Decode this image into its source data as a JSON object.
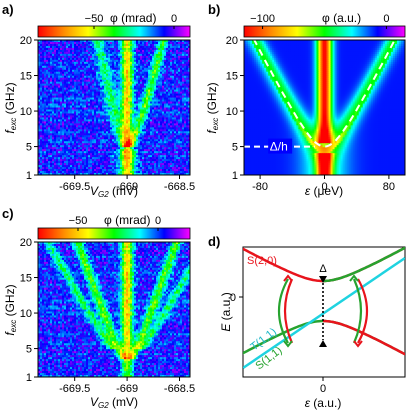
{
  "colorscale": [
    "#ff0000",
    "#ff8c00",
    "#ffff00",
    "#00ff00",
    "#00ffff",
    "#0000ff",
    "#ff00ff"
  ],
  "chart_data": [
    {
      "panel": "a)",
      "type": "heatmap",
      "colorbar": {
        "label": "φ (mrad)",
        "ticks": [
          {
            "v": -50,
            "label": "−50"
          },
          {
            "v": 0,
            "label": "0"
          }
        ],
        "range": [
          -85,
          10
        ]
      },
      "xlabel": "V_G2 (mV)",
      "ylabel": "f_exc (GHz)",
      "xlim": [
        -669.85,
        -668.4
      ],
      "ylim": [
        1,
        20
      ],
      "xticks": [
        {
          "v": -669.5,
          "label": "-669.5"
        },
        {
          "v": -669,
          "label": "-669"
        },
        {
          "v": -668.5,
          "label": "-668.5"
        }
      ],
      "yticks": [
        {
          "v": 1,
          "label": "1"
        },
        {
          "v": 5,
          "label": "5"
        },
        {
          "v": 10,
          "label": "10"
        },
        {
          "v": 15,
          "label": "15"
        },
        {
          "v": 20,
          "label": "20"
        }
      ]
    },
    {
      "panel": "b)",
      "type": "heatmap",
      "colorbar": {
        "label": "φ (a.u.)",
        "ticks": [
          {
            "v": -100,
            "label": "−100"
          },
          {
            "v": 0,
            "label": "0"
          }
        ],
        "range": [
          -115,
          15
        ]
      },
      "xlabel": "ε (μeV)",
      "ylabel": "f_exc (GHz)",
      "xlim": [
        -100,
        100
      ],
      "ylim": [
        1,
        20
      ],
      "xticks": [
        {
          "v": -80,
          "label": "-80"
        },
        {
          "v": 0,
          "label": "0"
        },
        {
          "v": 80,
          "label": "80"
        }
      ],
      "yticks": [
        {
          "v": 1,
          "label": "1"
        },
        {
          "v": 5,
          "label": "5"
        },
        {
          "v": 10,
          "label": "10"
        },
        {
          "v": 15,
          "label": "15"
        },
        {
          "v": 20,
          "label": "20"
        }
      ],
      "annotation": "Δ/h",
      "gap_GHz": 5
    },
    {
      "panel": "c)",
      "type": "heatmap",
      "colorbar": {
        "label": "φ (mrad)",
        "ticks": [
          {
            "v": -50,
            "label": "−50"
          },
          {
            "v": 0,
            "label": "0"
          }
        ],
        "range": [
          -75,
          20
        ]
      },
      "xlabel": "V_G2 (mV)",
      "ylabel": "f_exc (GHz)",
      "xlim": [
        -669.85,
        -668.4
      ],
      "ylim": [
        1,
        20
      ],
      "xticks": [
        {
          "v": -669.5,
          "label": "-669.5"
        },
        {
          "v": -669,
          "label": "-669"
        },
        {
          "v": -668.5,
          "label": "-668.5"
        }
      ],
      "yticks": [
        {
          "v": 1,
          "label": "1"
        },
        {
          "v": 5,
          "label": "5"
        },
        {
          "v": 10,
          "label": "10"
        },
        {
          "v": 15,
          "label": "15"
        },
        {
          "v": 20,
          "label": "20"
        }
      ]
    },
    {
      "panel": "d)",
      "type": "line",
      "xlabel": "ε (a.u.)",
      "ylabel": "E (a.u.)",
      "xticks": [
        {
          "v": 0,
          "label": "0"
        }
      ],
      "yticks": [
        {
          "v": 0,
          "label": "0"
        }
      ],
      "series": [
        {
          "name": "S(2,0)",
          "color": "#e8141c"
        },
        {
          "name": "T(1,1)",
          "color": "#1fd3e0"
        },
        {
          "name": "S(1,1)",
          "color": "#27a32f"
        }
      ],
      "gap_label": "Δ"
    }
  ]
}
